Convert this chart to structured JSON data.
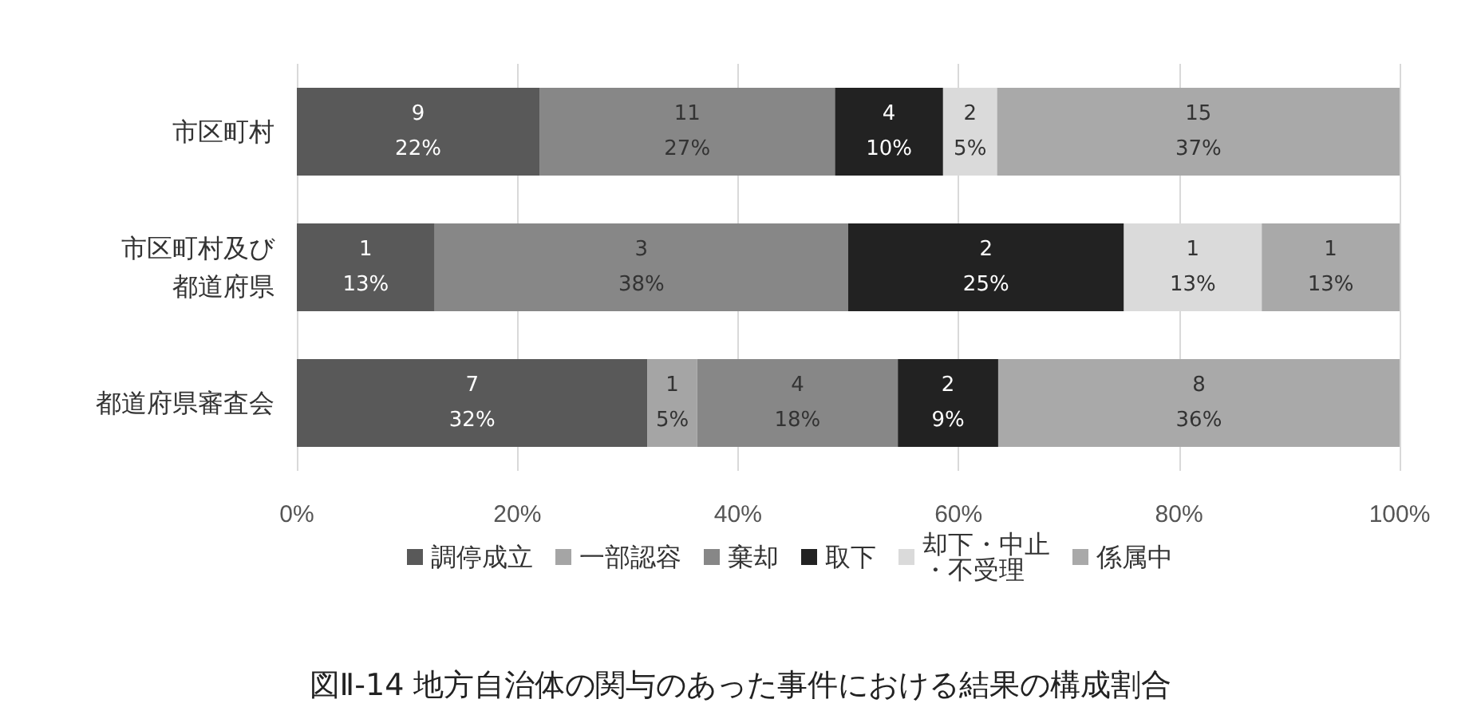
{
  "chart_data": {
    "type": "bar",
    "orientation": "horizontal",
    "stacked": true,
    "title": "図Ⅱ-14 地方自治体の関与のあった事件における結果の構成割合",
    "categories": [
      "市区町村",
      "市区町村及び都道府県",
      "都道府県審査会"
    ],
    "series": [
      {
        "name": "調停成立",
        "color": "#595959",
        "values": [
          22.0,
          12.5,
          31.8
        ],
        "value_labels": [
          "9\n22%",
          "1\n13%",
          "7\n32%"
        ]
      },
      {
        "name": "一部認容",
        "color": "#a5a5a5",
        "values": [
          0,
          0,
          4.5
        ],
        "value_labels": [
          null,
          null,
          "1\n5%"
        ]
      },
      {
        "name": "棄却",
        "color": "#878787",
        "values": [
          26.8,
          37.5,
          18.2
        ],
        "value_labels": [
          "11\n27%",
          "3\n38%",
          "4\n18%"
        ]
      },
      {
        "name": "取下",
        "color": "#222222",
        "values": [
          9.8,
          25.0,
          9.1
        ],
        "value_labels": [
          "4\n10%",
          "2\n25%",
          "2\n9%"
        ]
      },
      {
        "name": "却下・中止・不受理",
        "color": "#dadada",
        "values": [
          4.9,
          12.5,
          0
        ],
        "value_labels": [
          "2\n5%",
          "1\n13%",
          null
        ]
      },
      {
        "name": "係属中",
        "color": "#a9a9a9",
        "values": [
          36.5,
          12.5,
          36.4
        ],
        "value_labels": [
          "15\n37%",
          "1\n13%",
          "8\n36%"
        ]
      }
    ],
    "xlim": [
      0,
      100
    ],
    "xticks": [
      {
        "value": 0,
        "label": "0%"
      },
      {
        "value": 20,
        "label": "20%"
      },
      {
        "value": 40,
        "label": "40%"
      },
      {
        "value": 60,
        "label": "60%"
      },
      {
        "value": 80,
        "label": "80%"
      },
      {
        "value": 100,
        "label": "100%"
      }
    ],
    "grid": "x",
    "legend": "bottom"
  }
}
